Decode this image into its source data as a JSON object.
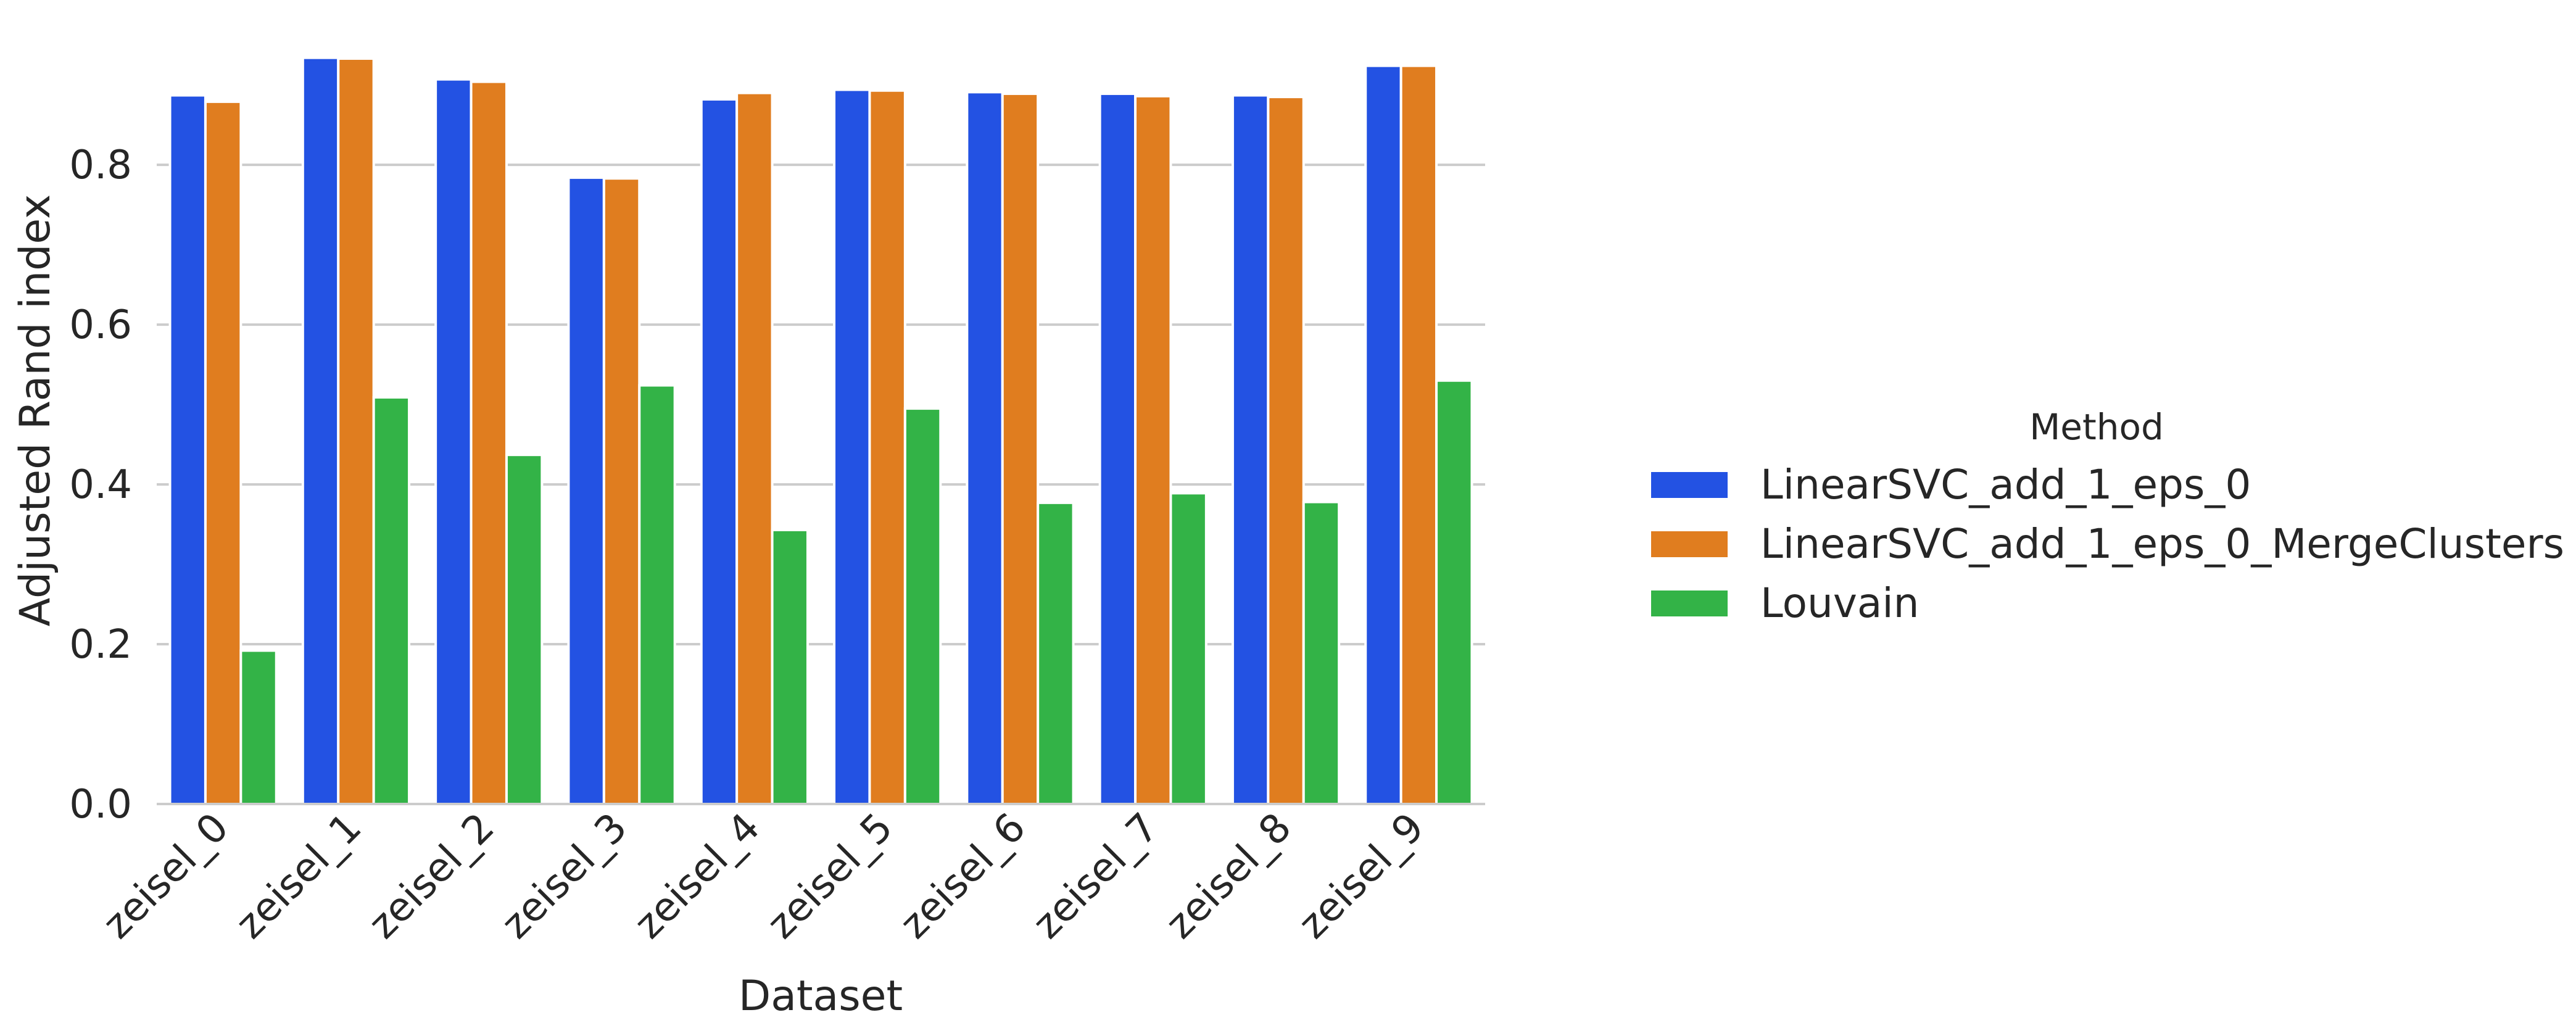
{
  "chart_data": {
    "type": "bar",
    "xlabel": "Dataset",
    "ylabel": "Adjusted Rand index",
    "ylim": [
      0,
      0.96
    ],
    "yticks": [
      0.0,
      0.2,
      0.4,
      0.6,
      0.8
    ],
    "ytick_labels": [
      "0.0",
      "0.2",
      "0.4",
      "0.6",
      "0.8"
    ],
    "grid": "horizontal",
    "legend_title": "Method",
    "legend_position": "right",
    "categories": [
      "zeisel_0",
      "zeisel_1",
      "zeisel_2",
      "zeisel_3",
      "zeisel_4",
      "zeisel_5",
      "zeisel_6",
      "zeisel_7",
      "zeisel_8",
      "zeisel_9"
    ],
    "series": [
      {
        "name": "LinearSVC_add_1_eps_0",
        "color": "#2352e3",
        "values": [
          0.887,
          0.934,
          0.907,
          0.784,
          0.882,
          0.894,
          0.891,
          0.889,
          0.887,
          0.924
        ]
      },
      {
        "name": "LinearSVC_add_1_eps_0_MergeClusters",
        "color": "#e07d1f",
        "values": [
          0.879,
          0.933,
          0.904,
          0.783,
          0.89,
          0.893,
          0.889,
          0.886,
          0.885,
          0.924
        ]
      },
      {
        "name": "Louvain",
        "color": "#33b347",
        "values": [
          0.192,
          0.509,
          0.437,
          0.524,
          0.343,
          0.495,
          0.377,
          0.389,
          0.378,
          0.53
        ]
      }
    ]
  }
}
